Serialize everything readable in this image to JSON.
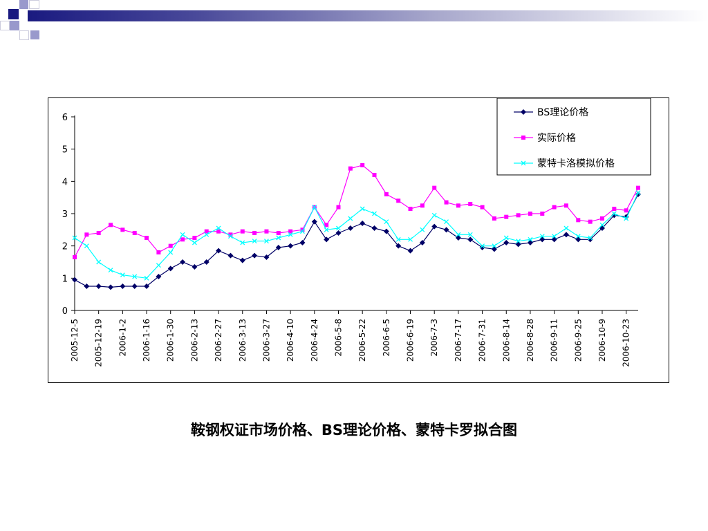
{
  "caption": "鞍钢权证市场价格、BS理论价格、蒙特卡罗拟合图",
  "colors": {
    "bs": "#000066",
    "actual": "#ff00ff",
    "mc": "#00ffff",
    "deco_dark": "#1a1a80",
    "deco_light": "#9999cc"
  },
  "chart_data": {
    "type": "line",
    "title": "",
    "xlabel": "",
    "ylabel": "",
    "ylim": [
      0,
      6
    ],
    "yticks": [
      "0",
      "1",
      "2",
      "3",
      "4",
      "5",
      "6"
    ],
    "xticks": [
      "2005-12-5",
      "2005-12-19",
      "2006-1-2",
      "2006-1-16",
      "2006-1-30",
      "2006-2-13",
      "2006-2-27",
      "2006-3-13",
      "2006-3-27",
      "2006-4-10",
      "2006-4-24",
      "2006-5-8",
      "2006-5-22",
      "2006-6-5",
      "2006-6-19",
      "2006-7-3",
      "2006-7-17",
      "2006-7-31",
      "2006-8-14",
      "2006-8-28",
      "2006-9-11",
      "2006-9-25",
      "2006-10-9",
      "2006-10-23"
    ],
    "legend_position": "top-right",
    "grid": false,
    "x": [
      "2005-12-5",
      "2005-12-12",
      "2005-12-19",
      "2005-12-26",
      "2006-1-2",
      "2006-1-9",
      "2006-1-16",
      "2006-1-23",
      "2006-1-30",
      "2006-2-6",
      "2006-2-13",
      "2006-2-20",
      "2006-2-27",
      "2006-3-6",
      "2006-3-13",
      "2006-3-20",
      "2006-3-27",
      "2006-4-3",
      "2006-4-10",
      "2006-4-17",
      "2006-4-24",
      "2006-5-1",
      "2006-5-8",
      "2006-5-15",
      "2006-5-22",
      "2006-5-29",
      "2006-6-5",
      "2006-6-12",
      "2006-6-19",
      "2006-6-26",
      "2006-7-3",
      "2006-7-10",
      "2006-7-17",
      "2006-7-24",
      "2006-7-31",
      "2006-8-7",
      "2006-8-14",
      "2006-8-21",
      "2006-8-28",
      "2006-9-4",
      "2006-9-11",
      "2006-9-18",
      "2006-9-25",
      "2006-10-2",
      "2006-10-9",
      "2006-10-16",
      "2006-10-23",
      "2006-10-30"
    ],
    "series": [
      {
        "name": "BS理论价格",
        "marker": "diamond",
        "values": [
          0.95,
          0.75,
          0.75,
          0.72,
          0.75,
          0.75,
          0.75,
          1.05,
          1.3,
          1.5,
          1.35,
          1.5,
          1.85,
          1.7,
          1.55,
          1.7,
          1.65,
          1.95,
          2.0,
          2.1,
          2.75,
          2.2,
          2.4,
          2.55,
          2.7,
          2.55,
          2.45,
          2.0,
          1.85,
          2.1,
          2.6,
          2.5,
          2.25,
          2.2,
          1.95,
          1.9,
          2.1,
          2.05,
          2.1,
          2.2,
          2.2,
          2.35,
          2.2,
          2.2,
          2.55,
          2.95,
          2.9,
          3.6
        ]
      },
      {
        "name": "实际价格",
        "marker": "square",
        "values": [
          1.65,
          2.35,
          2.4,
          2.65,
          2.5,
          2.4,
          2.25,
          1.8,
          2.0,
          2.2,
          2.25,
          2.45,
          2.45,
          2.35,
          2.45,
          2.4,
          2.45,
          2.4,
          2.45,
          2.5,
          3.2,
          2.65,
          3.2,
          4.4,
          4.5,
          4.2,
          3.6,
          3.4,
          3.15,
          3.25,
          3.8,
          3.35,
          3.25,
          3.3,
          3.2,
          2.85,
          2.9,
          2.95,
          3.0,
          3.0,
          3.2,
          3.25,
          2.8,
          2.75,
          2.85,
          3.15,
          3.1,
          3.8
        ]
      },
      {
        "name": "蒙特卡洛模拟价格",
        "marker": "x",
        "values": [
          2.25,
          2.0,
          1.5,
          1.25,
          1.1,
          1.05,
          1.0,
          1.4,
          1.8,
          2.35,
          2.1,
          2.35,
          2.55,
          2.3,
          2.1,
          2.15,
          2.15,
          2.25,
          2.35,
          2.45,
          3.2,
          2.5,
          2.55,
          2.85,
          3.15,
          3.0,
          2.75,
          2.2,
          2.2,
          2.5,
          2.95,
          2.75,
          2.35,
          2.35,
          2.0,
          2.0,
          2.25,
          2.15,
          2.2,
          2.3,
          2.3,
          2.55,
          2.3,
          2.25,
          2.65,
          3.0,
          2.85,
          3.65
        ]
      }
    ]
  }
}
